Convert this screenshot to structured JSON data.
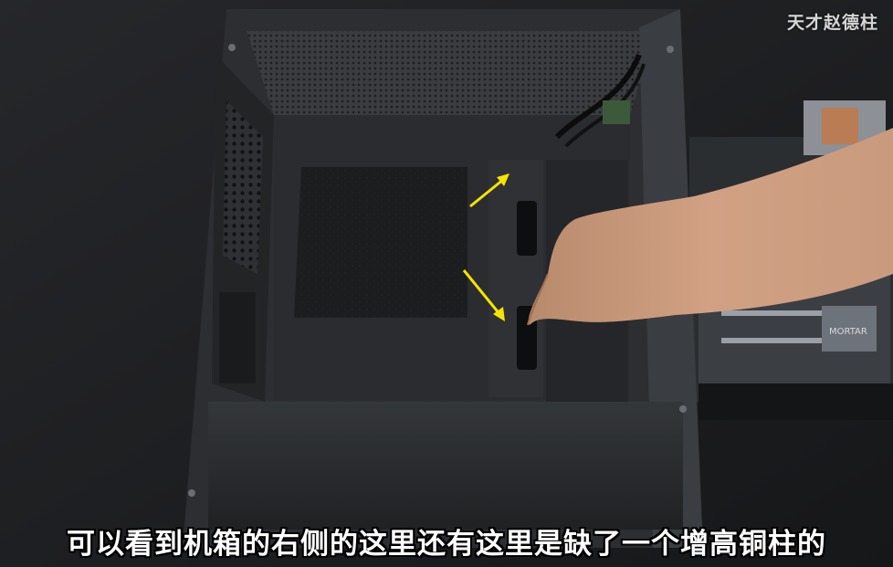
{
  "watermark": {
    "text": "天才赵德柱"
  },
  "subtitle": {
    "text": "可以看到机箱的右侧的这里还有这里是缺了一个增高铜柱的"
  },
  "scene": {
    "subject": "pc-case-interior",
    "annotation_color": "#f5e400",
    "case_color": "#2a2c2f",
    "background_color": "#1b1c1e"
  }
}
